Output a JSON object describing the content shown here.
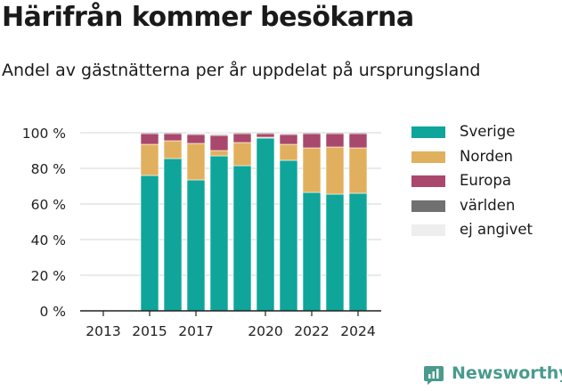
{
  "title": "Härifrån kommer besökarna",
  "subtitle": "Andel av gästnätterna per år uppdelat på ursprungsland",
  "brand": {
    "name": "Newsworthy",
    "icon": "newsworthy-logo-icon",
    "color": "#4a9a8e"
  },
  "chart_data": {
    "type": "bar",
    "stacked": true,
    "categories": [
      2013,
      2014,
      2015,
      2016,
      2017,
      2018,
      2019,
      2020,
      2021,
      2022,
      2023,
      2024
    ],
    "x_ticks": [
      "2013",
      "2015",
      "2017",
      "2020",
      "2022",
      "2024"
    ],
    "x_tick_values": [
      2013,
      2015,
      2017,
      2020,
      2022,
      2024
    ],
    "y_ticks": [
      "0 %",
      "20 %",
      "40 %",
      "60 %",
      "80 %",
      "100 %"
    ],
    "y_tick_values": [
      0,
      20,
      40,
      60,
      80,
      100
    ],
    "ylim": [
      0,
      100
    ],
    "grid": true,
    "legend_position": "right",
    "series": [
      {
        "name": "Sverige",
        "color": "#0fa59a",
        "values": [
          null,
          null,
          76,
          85.5,
          73.5,
          87,
          81.5,
          97,
          84.5,
          66.5,
          65.5,
          66
        ]
      },
      {
        "name": "Norden",
        "color": "#e1b05e",
        "values": [
          null,
          null,
          17.5,
          10,
          20.5,
          3,
          13,
          0.5,
          9,
          25,
          26.5,
          25.5
        ]
      },
      {
        "name": "Europa",
        "color": "#a9486c",
        "values": [
          null,
          null,
          6,
          4,
          5,
          8.5,
          5,
          2,
          5.5,
          8,
          7.5,
          8
        ]
      },
      {
        "name": "världen",
        "color": "#707070",
        "values": [
          null,
          null,
          0.5,
          0.5,
          0.5,
          0.5,
          0.5,
          0.5,
          0.5,
          0.5,
          0.5,
          0.5
        ]
      },
      {
        "name": "ej angivet",
        "color": "#eeeeee",
        "values": [
          null,
          null,
          0,
          0,
          0.5,
          1,
          0,
          0,
          0.5,
          0,
          0,
          0
        ]
      }
    ]
  }
}
